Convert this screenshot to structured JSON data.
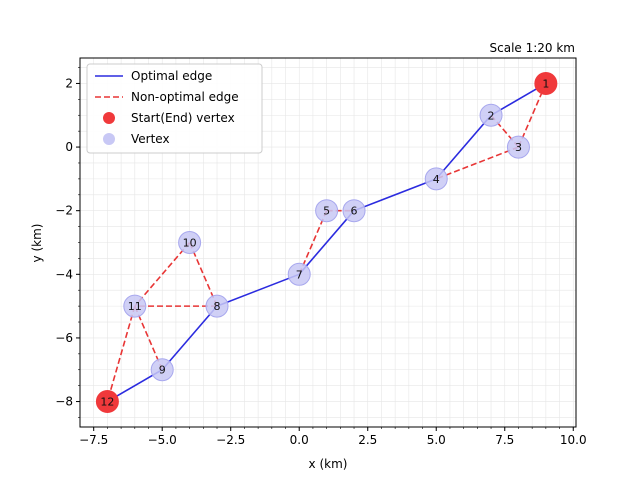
{
  "chart_data": {
    "type": "scatter",
    "title": "",
    "annotation": "Scale 1:20 km",
    "xlabel": "x (km)",
    "ylabel": "y (km)",
    "xlim": [
      -8.0,
      10.1
    ],
    "ylim": [
      -8.8,
      2.8
    ],
    "xticks": [
      -7.5,
      -5.0,
      -2.5,
      0.0,
      2.5,
      5.0,
      7.5,
      10.0
    ],
    "xtick_labels": [
      "−7.5",
      "−5.0",
      "−2.5",
      "0.0",
      "2.5",
      "5.0",
      "7.5",
      "10.0"
    ],
    "yticks": [
      2,
      0,
      -2,
      -4,
      -6,
      -8
    ],
    "ytick_labels": [
      "2",
      "0",
      "−2",
      "−4",
      "−6",
      "−8"
    ],
    "grid": true,
    "legend_position": "top-left",
    "legend": [
      {
        "label": "Optimal edge",
        "kind": "line",
        "color": "#2b2bdf",
        "dashed": false
      },
      {
        "label": "Non-optimal edge",
        "kind": "line",
        "color": "#e83535",
        "dashed": true
      },
      {
        "label": "Start(End) vertex",
        "kind": "marker",
        "color": "#f0393b"
      },
      {
        "label": "Vertex",
        "kind": "marker",
        "color": "#c8c8f5"
      }
    ],
    "vertices": [
      {
        "id": "1",
        "x": 9,
        "y": 2,
        "role": "start"
      },
      {
        "id": "2",
        "x": 7,
        "y": 1,
        "role": "vertex"
      },
      {
        "id": "3",
        "x": 8,
        "y": 0,
        "role": "vertex"
      },
      {
        "id": "4",
        "x": 5,
        "y": -1,
        "role": "vertex"
      },
      {
        "id": "5",
        "x": 1,
        "y": -2,
        "role": "vertex"
      },
      {
        "id": "6",
        "x": 2,
        "y": -2,
        "role": "vertex"
      },
      {
        "id": "7",
        "x": 0,
        "y": -4,
        "role": "vertex"
      },
      {
        "id": "8",
        "x": -3,
        "y": -5,
        "role": "vertex"
      },
      {
        "id": "9",
        "x": -5,
        "y": -7,
        "role": "vertex"
      },
      {
        "id": "10",
        "x": -4,
        "y": -3,
        "role": "vertex"
      },
      {
        "id": "11",
        "x": -6,
        "y": -5,
        "role": "vertex"
      },
      {
        "id": "12",
        "x": -7,
        "y": -8,
        "role": "end"
      }
    ],
    "optimal_edges": [
      [
        "1",
        "2"
      ],
      [
        "2",
        "4"
      ],
      [
        "4",
        "6"
      ],
      [
        "6",
        "7"
      ],
      [
        "7",
        "8"
      ],
      [
        "8",
        "9"
      ],
      [
        "9",
        "12"
      ]
    ],
    "non_optimal_edges": [
      [
        "1",
        "3"
      ],
      [
        "2",
        "3"
      ],
      [
        "3",
        "4"
      ],
      [
        "5",
        "6"
      ],
      [
        "5",
        "7"
      ],
      [
        "8",
        "10"
      ],
      [
        "8",
        "11"
      ],
      [
        "10",
        "11"
      ],
      [
        "9",
        "11"
      ],
      [
        "11",
        "12"
      ]
    ],
    "colors": {
      "optimal": "#2b2bdf",
      "non_optimal": "#e83535",
      "start_end": "#f0393b",
      "vertex_fill": "#c8c8f5",
      "vertex_stroke": "#a8a8ee"
    }
  }
}
